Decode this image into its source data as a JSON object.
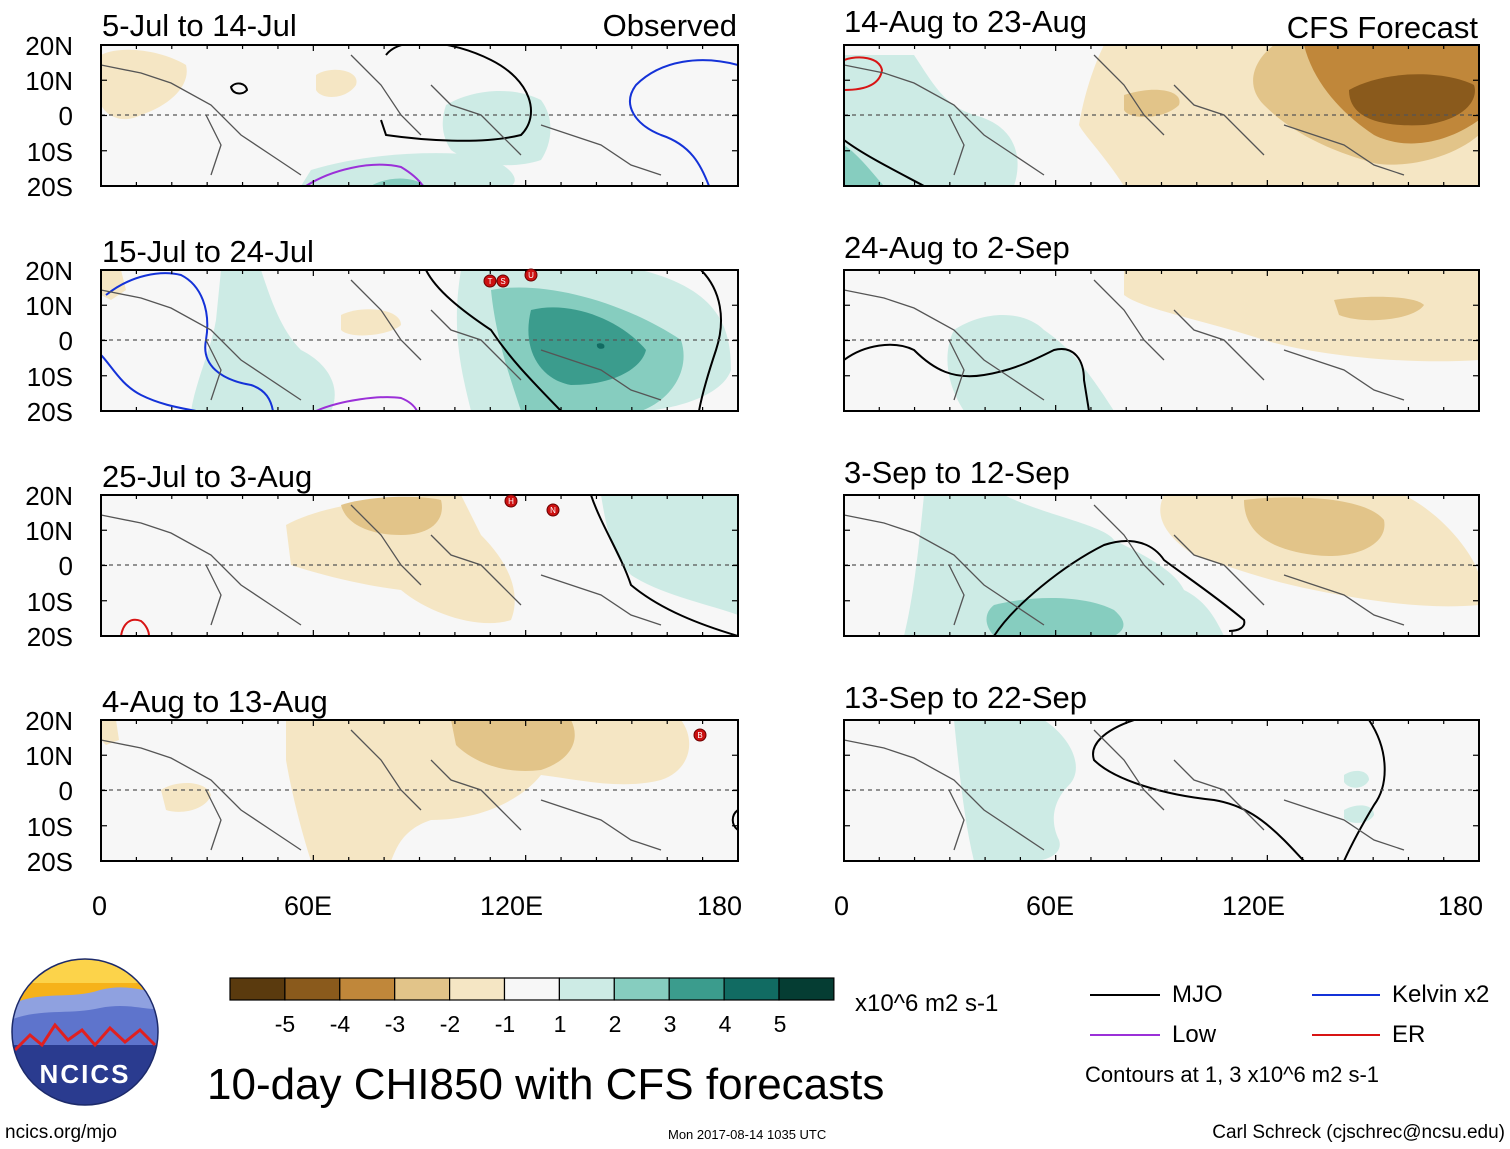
{
  "figure": {
    "title": "10-day CHI850 with CFS forecasts",
    "left_header": "Observed",
    "right_header": "CFS Forecast",
    "footer_left": "ncics.org/mjo",
    "footer_center": "Mon 2017-08-14 1035 UTC",
    "footer_right": "Carl Schreck (cjschrec@ncsu.edu)",
    "logo_text": "NCICS"
  },
  "axes": {
    "lat_labels": [
      "20N",
      "10N",
      "0",
      "10S",
      "20S"
    ],
    "lon_labels": [
      "0",
      "60E",
      "120E",
      "180"
    ]
  },
  "panels": [
    {
      "id": "obs-1",
      "title": "5-Jul to 14-Jul"
    },
    {
      "id": "obs-2",
      "title": "15-Jul to 24-Jul"
    },
    {
      "id": "obs-3",
      "title": "25-Jul to 3-Aug"
    },
    {
      "id": "obs-4",
      "title": "4-Aug to 13-Aug"
    },
    {
      "id": "fc-1",
      "title": "14-Aug to 23-Aug"
    },
    {
      "id": "fc-2",
      "title": "24-Aug to 2-Sep"
    },
    {
      "id": "fc-3",
      "title": "3-Sep to 12-Sep"
    },
    {
      "id": "fc-4",
      "title": "13-Sep to 22-Sep"
    }
  ],
  "colorbar": {
    "unit_label": "x10^6 m2 s-1",
    "tick_labels": [
      "-5",
      "-4",
      "-3",
      "-2",
      "-1",
      "1",
      "2",
      "3",
      "4",
      "5"
    ],
    "colors": [
      "#5a3a0e",
      "#8a5a1c",
      "#c0873a",
      "#e2c489",
      "#f5e6c4",
      "#f7f7f7",
      "#cdebe5",
      "#86cdbf",
      "#3b9c8d",
      "#116b62",
      "#053d33"
    ]
  },
  "legend": {
    "items": [
      {
        "label": "MJO",
        "color": "#000000"
      },
      {
        "label": "Kelvin x2",
        "color": "#1432d8"
      },
      {
        "label": "Low",
        "color": "#9b30d8"
      },
      {
        "label": "ER",
        "color": "#d81414"
      }
    ],
    "note": "Contours at 1, 3 x10^6 m2 s-1"
  },
  "storm_markers": [
    {
      "panel": "obs-2",
      "letter": "T"
    },
    {
      "panel": "obs-2",
      "letter": "S"
    },
    {
      "panel": "obs-2",
      "letter": "U"
    },
    {
      "panel": "obs-3",
      "letter": "H"
    },
    {
      "panel": "obs-3",
      "letter": "N"
    },
    {
      "panel": "obs-4",
      "letter": "B"
    }
  ]
}
